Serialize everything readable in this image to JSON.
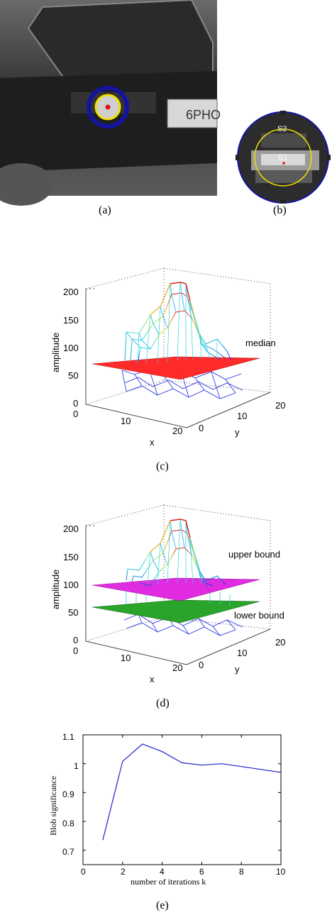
{
  "panels": {
    "a": {
      "caption": "(a)",
      "plate_text": "6PHO",
      "colors": {
        "outer_ring": "#1414a0",
        "inner_ring": "#f0e000",
        "center": "#e01010"
      }
    },
    "b": {
      "caption": "(b)",
      "labels": [
        "S2",
        "S1"
      ],
      "colors": {
        "outer_ring": "#1414a0",
        "inner_ring": "#f0e000",
        "center": "#e01010"
      }
    },
    "c": {
      "caption": "(c)",
      "zlabel": "amplitude",
      "xlabel": "x",
      "ylabel": "y",
      "z_ticks": [
        "0",
        "50",
        "100",
        "150",
        "200"
      ],
      "x_ticks": [
        "0",
        "10",
        "20"
      ],
      "y_ticks": [
        "0",
        "10",
        "20"
      ],
      "plane_labels": [
        "median"
      ],
      "plane_colors": [
        "#ff2020"
      ]
    },
    "d": {
      "caption": "(d)",
      "zlabel": "amplitude",
      "xlabel": "x",
      "ylabel": "y",
      "z_ticks": [
        "0",
        "50",
        "100",
        "150",
        "200"
      ],
      "x_ticks": [
        "0",
        "10",
        "20"
      ],
      "y_ticks": [
        "0",
        "10",
        "20"
      ],
      "plane_labels": [
        "upper bound",
        "lower bound"
      ],
      "plane_colors": [
        "#e020e0",
        "#20a020"
      ]
    },
    "e": {
      "caption": "(e)",
      "xlabel": "number of iterations k",
      "ylabel": "Blob significance",
      "x_ticks": [
        "0",
        "2",
        "4",
        "6",
        "8",
        "10"
      ],
      "y_ticks": [
        "0.7",
        "0.8",
        "0.9",
        "1",
        "1.1"
      ]
    }
  },
  "chart_data": [
    {
      "type": "line",
      "panel": "e",
      "xlabel": "number of iterations k",
      "ylabel": "Blob significance",
      "xlim": [
        0,
        10
      ],
      "ylim": [
        0.65,
        1.1
      ],
      "series": [
        {
          "x": [
            1,
            2,
            3,
            4,
            5,
            6,
            7,
            8,
            9,
            10
          ],
          "y": [
            0.735,
            1.008,
            1.068,
            1.042,
            1.003,
            0.995,
            1.0,
            0.99,
            0.98,
            0.97
          ],
          "color": "#2020d0"
        }
      ]
    },
    {
      "type": "surface",
      "panel": "c",
      "zlim": [
        0,
        200
      ],
      "planes": [
        {
          "name": "median",
          "z": 68
        }
      ]
    },
    {
      "type": "surface",
      "panel": "d",
      "zlim": [
        0,
        200
      ],
      "planes": [
        {
          "name": "upper bound",
          "z": 90
        },
        {
          "name": "lower bound",
          "z": 52
        }
      ]
    }
  ]
}
